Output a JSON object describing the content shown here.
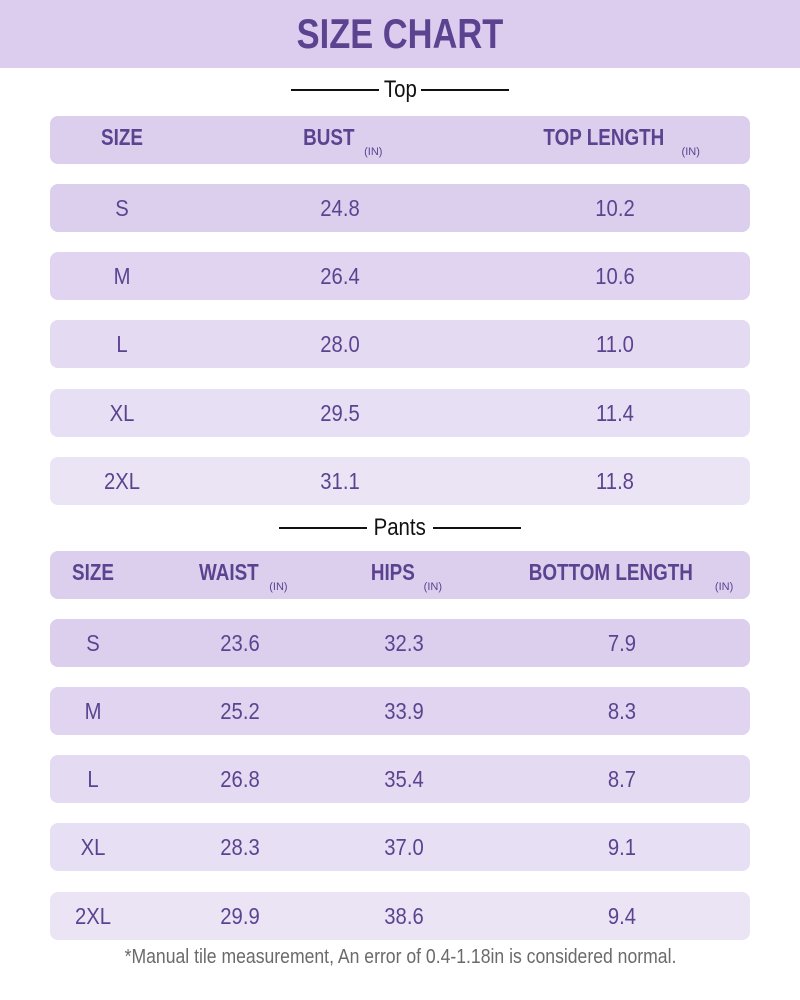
{
  "title": "SIZE CHART",
  "colors": {
    "accent": "#5b4390",
    "banner": "#dccdef",
    "row_dark": "#dccfee",
    "row_light": "#ebe4f5"
  },
  "top": {
    "label": "Top",
    "headers": [
      {
        "label": "SIZE",
        "unit": ""
      },
      {
        "label": "BUST",
        "unit": "(IN)"
      },
      {
        "label": "TOP LENGTH",
        "unit": "(IN)"
      }
    ],
    "rows": [
      [
        "S",
        "24.8",
        "10.2"
      ],
      [
        "M",
        "26.4",
        "10.6"
      ],
      [
        "L",
        "28.0",
        "11.0"
      ],
      [
        "XL",
        "29.5",
        "11.4"
      ],
      [
        "2XL",
        "31.1",
        "11.8"
      ]
    ]
  },
  "pants": {
    "label": "Pants",
    "headers": [
      {
        "label": "SIZE",
        "unit": ""
      },
      {
        "label": "WAIST",
        "unit": "(IN)"
      },
      {
        "label": "HIPS",
        "unit": "(IN)"
      },
      {
        "label": "BOTTOM LENGTH",
        "unit": "(IN)"
      }
    ],
    "rows": [
      [
        "S",
        "23.6",
        "32.3",
        "7.9"
      ],
      [
        "M",
        "25.2",
        "33.9",
        "8.3"
      ],
      [
        "L",
        "26.8",
        "35.4",
        "8.7"
      ],
      [
        "XL",
        "28.3",
        "37.0",
        "9.1"
      ],
      [
        "2XL",
        "29.9",
        "38.6",
        "9.4"
      ]
    ]
  },
  "note": "*Manual tile measurement, An error of 0.4-1.18in is considered normal."
}
